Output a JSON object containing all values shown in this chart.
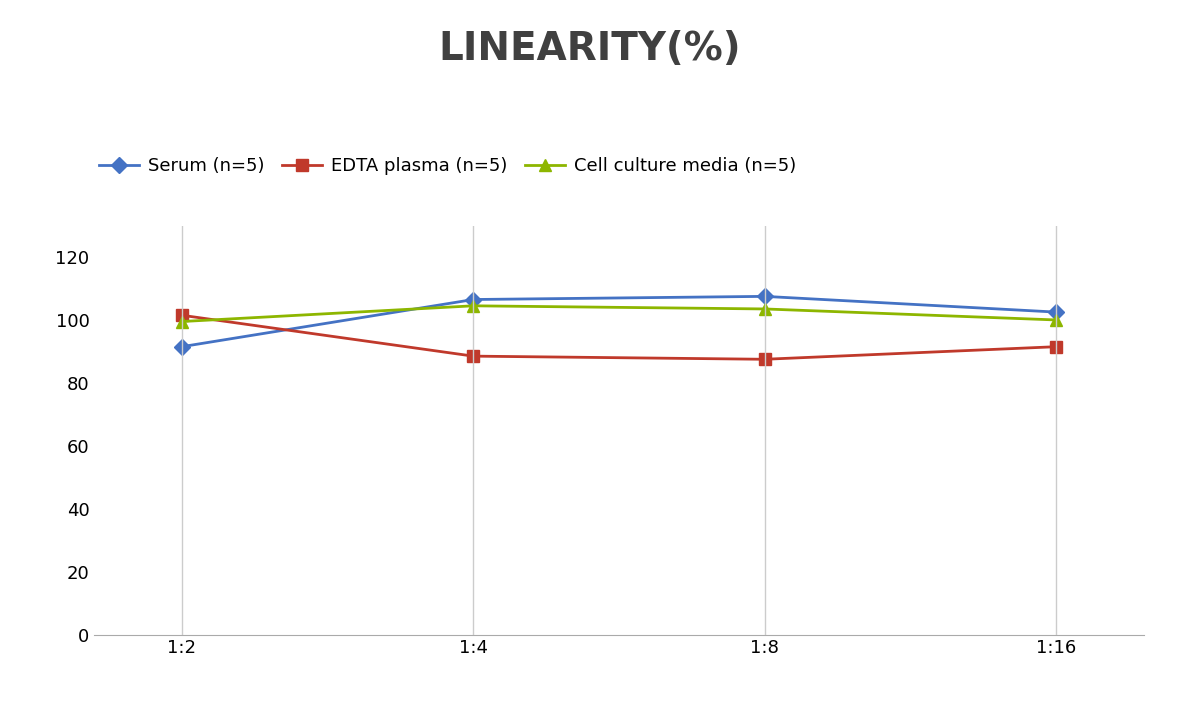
{
  "title": "LINEARITY(%)",
  "title_fontsize": 28,
  "title_fontweight": "bold",
  "x_labels": [
    "1:2",
    "1:4",
    "1:8",
    "1:16"
  ],
  "x_positions": [
    0,
    1,
    2,
    3
  ],
  "series": [
    {
      "label": "Serum (n=5)",
      "values": [
        91.5,
        106.5,
        107.5,
        102.5
      ],
      "color": "#4472C4",
      "marker": "D",
      "markersize": 8,
      "linewidth": 2
    },
    {
      "label": "EDTA plasma (n=5)",
      "values": [
        101.5,
        88.5,
        87.5,
        91.5
      ],
      "color": "#C0392B",
      "marker": "s",
      "markersize": 8,
      "linewidth": 2
    },
    {
      "label": "Cell culture media (n=5)",
      "values": [
        99.5,
        104.5,
        103.5,
        100.0
      ],
      "color": "#8DB600",
      "marker": "^",
      "markersize": 8,
      "linewidth": 2
    }
  ],
  "ylim": [
    0,
    130
  ],
  "yticks": [
    0,
    20,
    40,
    60,
    80,
    100,
    120
  ],
  "grid_color": "#CCCCCC",
  "background_color": "#FFFFFF",
  "legend_fontsize": 13,
  "axis_fontsize": 13,
  "title_color": "#404040"
}
